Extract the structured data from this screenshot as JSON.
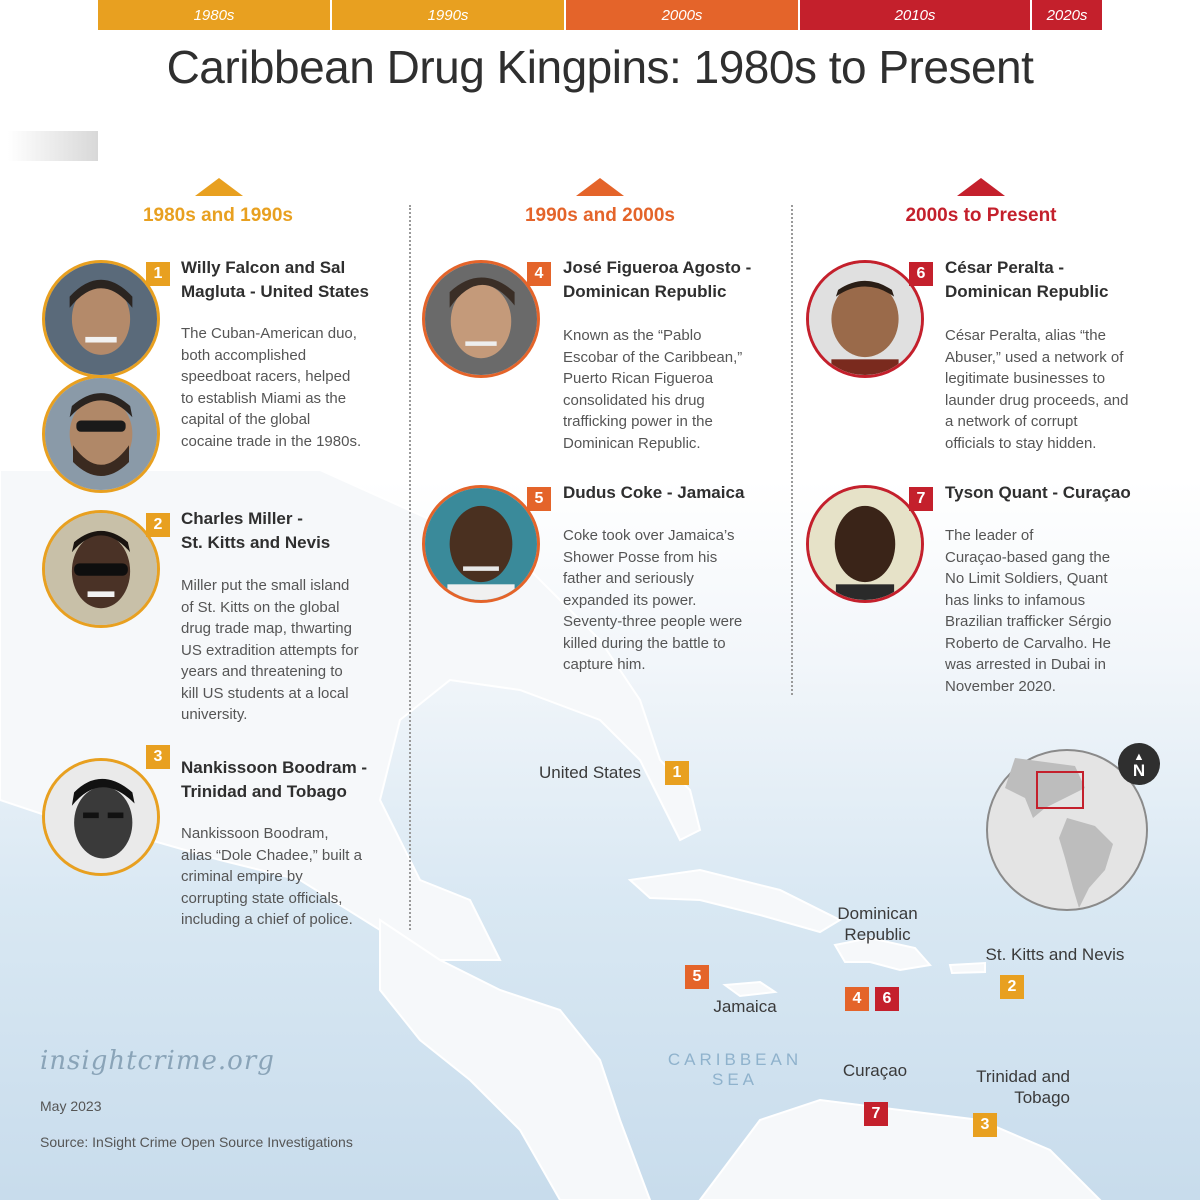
{
  "title": "Caribbean Drug Kingpins: 1980s to Present",
  "colors": {
    "gold": "#e8a020",
    "orange": "#e4642a",
    "red": "#c4202c",
    "gray": "#d8d8d8"
  },
  "timeline": [
    {
      "label": "1980s",
      "color": "#e8a020"
    },
    {
      "label": "1990s",
      "color": "#e8a020"
    },
    {
      "label": "2000s",
      "color": "#e4642a"
    },
    {
      "label": "2010s",
      "color": "#c4202c"
    },
    {
      "label": "2020s",
      "color": "#c4202c"
    }
  ],
  "columns": [
    {
      "heading": "1980s and 1990s",
      "color": "#e8a020"
    },
    {
      "heading": "1990s and 2000s",
      "color": "#e4642a"
    },
    {
      "heading": "2000s to Present",
      "color": "#c4202c"
    }
  ],
  "profiles": [
    {
      "num": "1",
      "name_line1": "Willy Falcon and Sal",
      "name_line2": "Magluta - United States",
      "desc": [
        "The Cuban-American duo,",
        "both accomplished",
        "speedboat racers, helped",
        "to establish Miami as the",
        "capital of the global",
        "cocaine trade in the 1980s."
      ]
    },
    {
      "num": "2",
      "name_line1": "Charles Miller -",
      "name_line2": "St. Kitts and Nevis",
      "desc": [
        "Miller put the small island",
        "of St. Kitts on the global",
        "drug trade map, thwarting",
        "US extradition attempts for",
        "years and threatening to",
        "kill US students at a local",
        "university."
      ]
    },
    {
      "num": "3",
      "name_line1": "Nankissoon Boodram -",
      "name_line2": "Trinidad and Tobago",
      "desc": [
        "Nankissoon Boodram,",
        "alias “Dole Chadee,” built a",
        "criminal empire by",
        "corrupting state officials,",
        "including a chief of police."
      ]
    },
    {
      "num": "4",
      "name_line1": "José Figueroa Agosto -",
      "name_line2": "Dominican Republic",
      "desc": [
        "Known as the “Pablo",
        "Escobar of the Caribbean,”",
        "Puerto Rican Figueroa",
        "consolidated his drug",
        "trafficking power in the",
        "Dominican Republic."
      ]
    },
    {
      "num": "5",
      "name_line1": "Dudus Coke - Jamaica",
      "name_line2": "",
      "desc": [
        "Coke took over Jamaica’s",
        "Shower Posse from his",
        "father and seriously",
        "expanded its power.",
        "Seventy-three people were",
        "killed during the battle to",
        "capture him."
      ]
    },
    {
      "num": "6",
      "name_line1": "César Peralta -",
      "name_line2": "Dominican Republic",
      "desc": [
        "César Peralta, alias “the",
        "Abuser,” used a network of",
        "legitimate businesses to",
        "launder drug proceeds, and",
        "a network of corrupt",
        "officials to stay hidden."
      ]
    },
    {
      "num": "7",
      "name_line1": "Tyson Quant - Curaçao",
      "name_line2": "",
      "desc": [
        "The leader of",
        "Curaçao-based gang the",
        "No Limit Soldiers, Quant",
        "has links to infamous",
        "Brazilian trafficker Sérgio",
        "Roberto de Carvalho. He",
        "was arrested in Dubai in",
        "November 2020."
      ]
    }
  ],
  "map": {
    "united_states": "United States",
    "dominican_republic_1": "Dominican",
    "dominican_republic_2": "Republic",
    "st_kitts": "St. Kitts and Nevis",
    "jamaica": "Jamaica",
    "caribbean_1": "CARIBBEAN",
    "caribbean_2": "SEA",
    "curacao": "Curaçao",
    "trinidad_1": "Trinidad and",
    "trinidad_2": "Tobago",
    "markers": {
      "us": "1",
      "jamaica": "5",
      "dr_a": "4",
      "dr_b": "6",
      "stkitts": "2",
      "curacao": "7",
      "trinidad": "3"
    },
    "north": "N"
  },
  "footer": {
    "brand": "insightcrime.org",
    "date": "May 2023",
    "source": "Source: InSight Crime Open Source Investigations"
  }
}
